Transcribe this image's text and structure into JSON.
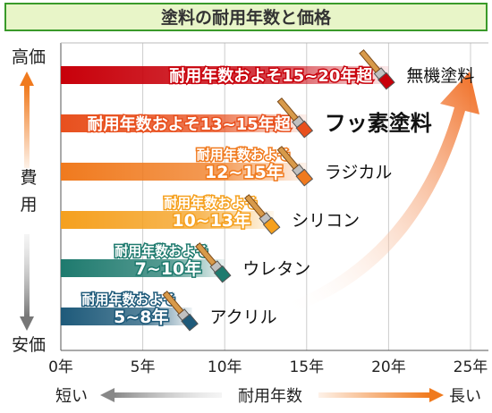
{
  "chart_data": {
    "type": "bar",
    "orientation": "horizontal",
    "title": "塗料の耐用年数と価格",
    "xlabel": "耐用年数",
    "x_short": "短い",
    "x_long": "長い",
    "ylabel": "費用",
    "y_high": "高価",
    "y_low": "安価",
    "xlim": [
      0,
      25
    ],
    "xticks": [
      "0年",
      "5年",
      "10年",
      "15年",
      "20年",
      "25年"
    ],
    "series": [
      {
        "category": "無機塗料",
        "label_line1": "耐用年数およそ15~20年超",
        "label_line2": "",
        "value": 20,
        "color": "#c8000a"
      },
      {
        "category": "フッ素塗料",
        "label_line1": "耐用年数およそ13~15年超",
        "label_line2": "",
        "value": 15,
        "color": "#e8501e"
      },
      {
        "category": "ラジカル",
        "label_line1": "耐用年数およそ",
        "label_line2": "12~15年",
        "value": 15,
        "color": "#f07a1e"
      },
      {
        "category": "シリコン",
        "label_line1": "耐用年数およそ",
        "label_line2": "10~13年",
        "value": 13,
        "color": "#f5a01e"
      },
      {
        "category": "ウレタン",
        "label_line1": "耐用年数およそ",
        "label_line2": "7~10年",
        "value": 10,
        "color": "#1e7a6e"
      },
      {
        "category": "アクリル",
        "label_line1": "耐用年数およそ",
        "label_line2": "5~8年",
        "value": 8,
        "color": "#1e5a7a"
      }
    ],
    "colors": {
      "title_bg": "#e8f5c8",
      "title_border": "#3a9a2a",
      "arrow": "#f07a1e",
      "axis": "#555555"
    }
  }
}
